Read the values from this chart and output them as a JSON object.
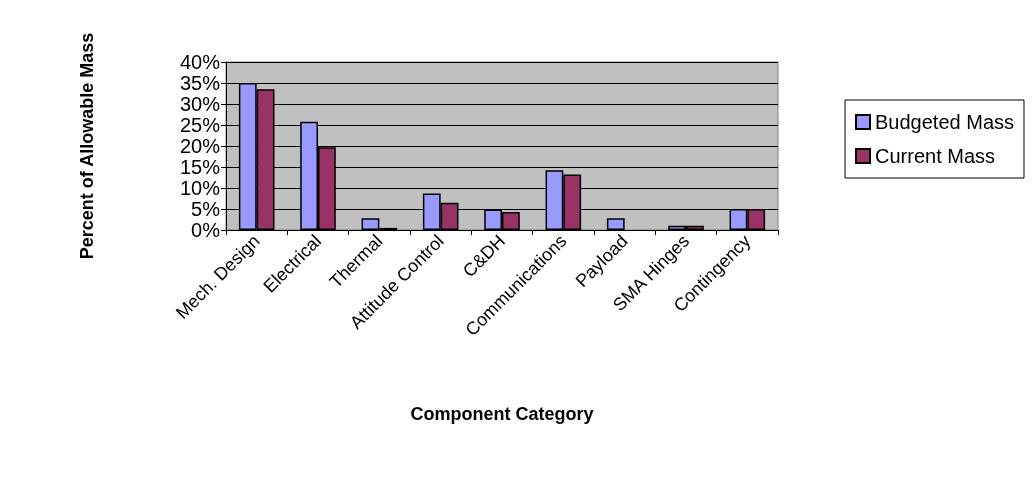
{
  "chart_data": {
    "type": "bar",
    "xlabel": "Component Category",
    "ylabel": "Percent of Allowable Mass",
    "categories": [
      "Mech. Design",
      "Electrical",
      "Thermal",
      "Attitude Control",
      "C&DH",
      "Communications",
      "Payload",
      "SMA Hinges",
      "Contingency"
    ],
    "series": [
      {
        "name": "Budgeted Mass",
        "color": "#9999ff",
        "values": [
          35,
          25.8,
          2.8,
          8.7,
          4.9,
          14.2,
          2.8,
          1.0,
          5
        ]
      },
      {
        "name": "Current Mass",
        "color": "#993366",
        "values": [
          33.5,
          19.7,
          0.5,
          6.5,
          4.3,
          13.2,
          null,
          1.0,
          5
        ]
      }
    ],
    "ylim": [
      0,
      40
    ],
    "yticks": [
      {
        "value": 0,
        "label": "0%"
      },
      {
        "value": 5,
        "label": "5%"
      },
      {
        "value": 10,
        "label": "10%"
      },
      {
        "value": 15,
        "label": "15%"
      },
      {
        "value": 20,
        "label": "20%"
      },
      {
        "value": 25,
        "label": "25%"
      },
      {
        "value": 30,
        "label": "30%"
      },
      {
        "value": 35,
        "label": "35%"
      },
      {
        "value": 40,
        "label": "40%"
      }
    ],
    "grid": "y",
    "legend": "right"
  }
}
